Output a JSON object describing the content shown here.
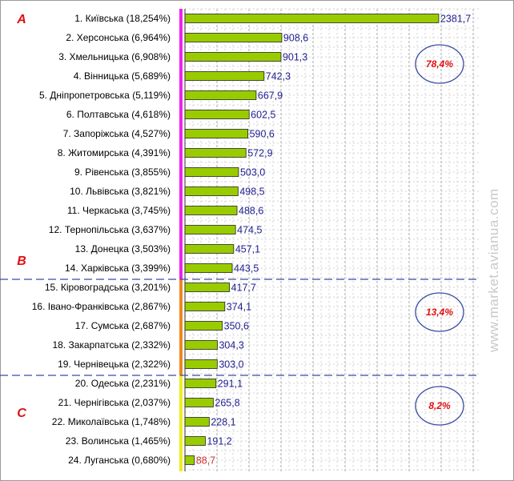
{
  "chart_data": {
    "type": "bar",
    "orientation": "horizontal",
    "categories": [
      "1. Київська (18,254%)",
      "2. Херсонська (6,964%)",
      "3. Хмельницька (6,908%)",
      "4. Вінницька (5,689%)",
      "5. Дніпропетровська (5,119%)",
      "6. Полтавська (4,618%)",
      "7. Запоріжська (4,527%)",
      "8. Житомирська (4,391%)",
      "9. Рівенська (3,855%)",
      "10. Львівська (3,821%)",
      "11. Черкаська (3,745%)",
      "12. Тернопільська (3,637%)",
      "13. Донецка (3,503%)",
      "14. Харківська (3,399%)",
      "15. Кіровоградська (3,201%)",
      "16. Івано-Франківська (2,867%)",
      "17. Сумська (2,687%)",
      "18. Закарпатська (2,332%)",
      "19. Чернівецька (2,322%)",
      "20. Одеська (2,231%)",
      "21. Чернігівська (2,037%)",
      "22. Миколаївська (1,748%)",
      "23. Волинська (1,465%)",
      "24. Луганська (0,680%)"
    ],
    "values": [
      2381.7,
      908.6,
      901.3,
      742.3,
      667.9,
      602.5,
      590.6,
      572.9,
      503.0,
      498.5,
      488.6,
      474.5,
      457.1,
      443.5,
      417.7,
      374.1,
      350.6,
      304.3,
      303.0,
      291.1,
      265.8,
      228.1,
      191.2,
      88.7
    ],
    "value_labels": [
      "2381,7",
      "908,6",
      "901,3",
      "742,3",
      "667,9",
      "602,5",
      "590,6",
      "572,9",
      "503,0",
      "498,5",
      "488,6",
      "474,5",
      "457,1",
      "443,5",
      "417,7",
      "374,1",
      "350,6",
      "304,3",
      "303,0",
      "291,1",
      "265,8",
      "228,1",
      "191,2",
      "88,7"
    ],
    "xlim": [
      0,
      2750
    ],
    "grid": true,
    "bar_color": "#99cc00",
    "value_label_color": "#1f1f8f",
    "low_value_label_color": "#d03030",
    "groups": [
      {
        "label": "A",
        "first_index": 0,
        "last_index": 13,
        "bracket_color": "#ee22ee",
        "share_label": "78,4%"
      },
      {
        "label": "B",
        "first_index": 14,
        "last_index": 18,
        "bracket_color": "#ee8822",
        "share_label": "13,4%"
      },
      {
        "label": "C",
        "first_index": 19,
        "last_index": 23,
        "bracket_color": "#eeee22",
        "share_label": "8,2%"
      }
    ],
    "divider_color": "#3a4aa0",
    "group_label_color": "#e01010",
    "circle_color": "#3a4aa0"
  },
  "watermark": "www.market.avianua.com"
}
